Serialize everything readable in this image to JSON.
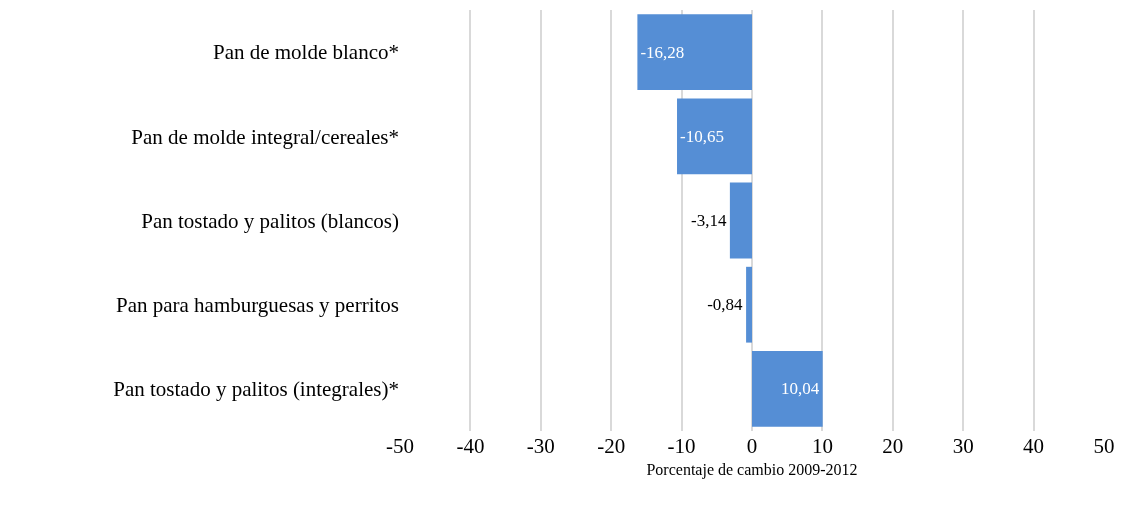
{
  "chart_data": {
    "type": "bar",
    "orientation": "horizontal",
    "xlabel": "Porcentaje de cambio 2009-2012",
    "categories": [
      "Pan de molde blanco*",
      "Pan de molde integral/cereales*",
      "Pan tostado y palitos (blancos)",
      "Pan para hamburguesas y perritos",
      "Pan tostado y palitos (integrales)*"
    ],
    "values": [
      -16.28,
      -10.65,
      -3.14,
      -0.84,
      10.04
    ],
    "value_labels": [
      "-16,28",
      "-10,65",
      "-3,14",
      "-0,84",
      "10,04"
    ],
    "color": "#558ed5",
    "xlim": [
      -50,
      50
    ],
    "xticks": [
      -50,
      -40,
      -30,
      -20,
      -10,
      0,
      10,
      20,
      30,
      40,
      50
    ],
    "grid": "x",
    "legend": false
  }
}
